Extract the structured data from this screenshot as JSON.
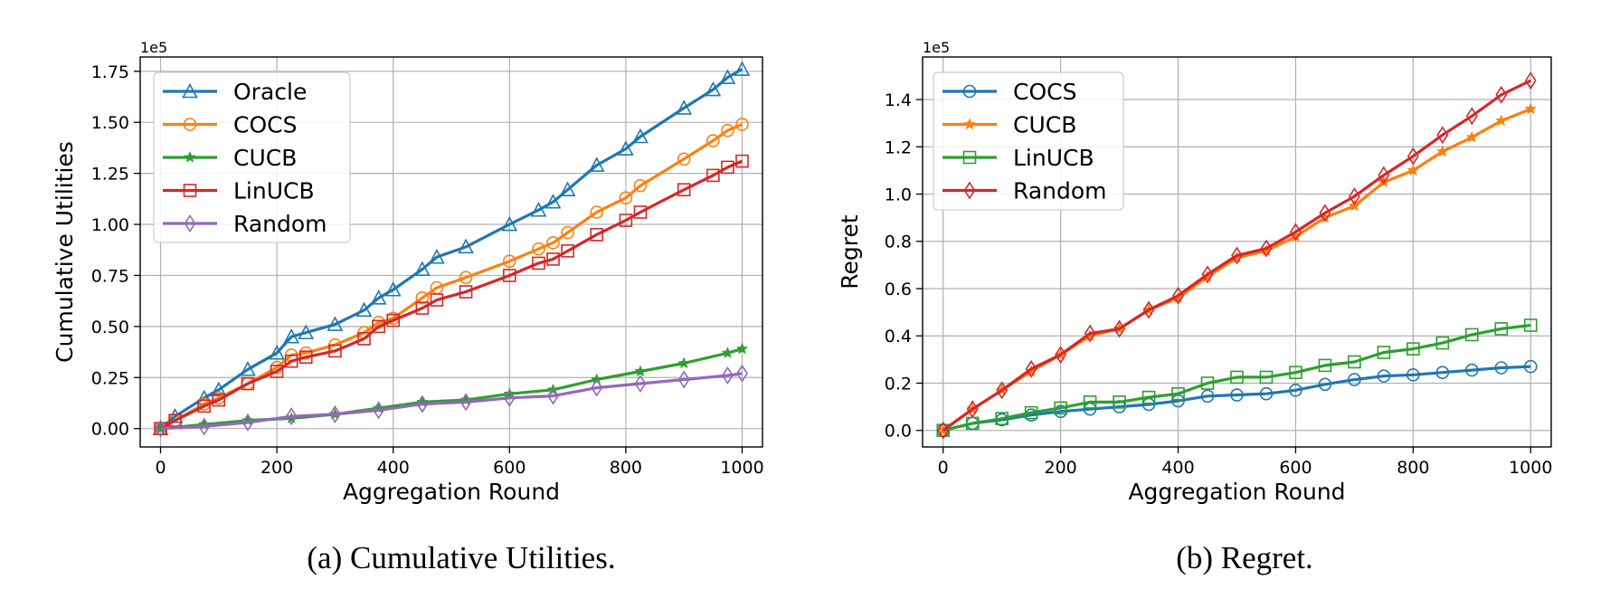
{
  "captions": [
    "(a) Cumulative Utilities.",
    "(b) Regret."
  ],
  "chart_data": [
    {
      "type": "line",
      "title": "",
      "xlabel": "Aggregation Round",
      "ylabel": "Cumulative Utilities",
      "scale_label": "1e5",
      "xlim": [
        -35,
        1035
      ],
      "ylim": [
        -0.09,
        1.82
      ],
      "xticks": [
        0,
        200,
        400,
        600,
        800,
        1000
      ],
      "yticks": [
        0.0,
        0.25,
        0.5,
        0.75,
        1.0,
        1.25,
        1.5,
        1.75
      ],
      "xtick_labels": [
        "0",
        "200",
        "400",
        "600",
        "800",
        "1000"
      ],
      "ytick_labels": [
        "0.00",
        "0.25",
        "0.50",
        "0.75",
        "1.00",
        "1.25",
        "1.50",
        "1.75"
      ],
      "grid": true,
      "legend_position": "top-left",
      "series": [
        {
          "name": "Oracle",
          "color": "#1f77b4",
          "marker": "triangle",
          "x": [
            0,
            25,
            75,
            100,
            150,
            200,
            225,
            250,
            300,
            350,
            375,
            400,
            450,
            475,
            525,
            600,
            650,
            675,
            700,
            750,
            800,
            825,
            900,
            950,
            975,
            1000
          ],
          "y": [
            0.0,
            0.06,
            0.15,
            0.19,
            0.29,
            0.37,
            0.45,
            0.47,
            0.51,
            0.58,
            0.64,
            0.68,
            0.78,
            0.84,
            0.89,
            1.0,
            1.07,
            1.11,
            1.17,
            1.29,
            1.37,
            1.43,
            1.57,
            1.66,
            1.72,
            1.76
          ]
        },
        {
          "name": "COCS",
          "color": "#ff7f0e",
          "marker": "circle",
          "x": [
            0,
            25,
            75,
            100,
            150,
            200,
            225,
            250,
            300,
            350,
            375,
            400,
            450,
            475,
            525,
            600,
            650,
            675,
            700,
            750,
            800,
            825,
            900,
            950,
            975,
            1000
          ],
          "y": [
            0.0,
            0.04,
            0.12,
            0.15,
            0.22,
            0.3,
            0.36,
            0.37,
            0.41,
            0.47,
            0.52,
            0.54,
            0.64,
            0.69,
            0.74,
            0.82,
            0.88,
            0.91,
            0.96,
            1.06,
            1.13,
            1.19,
            1.32,
            1.41,
            1.46,
            1.49
          ]
        },
        {
          "name": "CUCB",
          "color": "#2ca02c",
          "marker": "star",
          "x": [
            0,
            75,
            150,
            225,
            300,
            375,
            450,
            525,
            600,
            675,
            750,
            825,
            900,
            975,
            1000
          ],
          "y": [
            0.0,
            0.02,
            0.04,
            0.05,
            0.07,
            0.1,
            0.13,
            0.14,
            0.17,
            0.19,
            0.24,
            0.28,
            0.32,
            0.37,
            0.39
          ]
        },
        {
          "name": "LinUCB",
          "color": "#d62728",
          "marker": "square",
          "x": [
            0,
            25,
            75,
            100,
            150,
            200,
            225,
            250,
            300,
            350,
            375,
            400,
            450,
            475,
            525,
            600,
            650,
            675,
            700,
            750,
            800,
            825,
            900,
            950,
            975,
            1000
          ],
          "y": [
            0.0,
            0.04,
            0.11,
            0.14,
            0.22,
            0.28,
            0.33,
            0.35,
            0.38,
            0.44,
            0.5,
            0.53,
            0.59,
            0.63,
            0.67,
            0.75,
            0.81,
            0.83,
            0.87,
            0.95,
            1.02,
            1.06,
            1.17,
            1.24,
            1.28,
            1.31
          ]
        },
        {
          "name": "Random",
          "color": "#9467bd",
          "marker": "diamond",
          "x": [
            0,
            75,
            150,
            225,
            300,
            375,
            450,
            525,
            600,
            675,
            750,
            825,
            900,
            975,
            1000
          ],
          "y": [
            0.0,
            0.01,
            0.03,
            0.06,
            0.07,
            0.09,
            0.12,
            0.13,
            0.15,
            0.16,
            0.2,
            0.22,
            0.24,
            0.26,
            0.27
          ]
        }
      ]
    },
    {
      "type": "line",
      "title": "",
      "xlabel": "Aggregation Round",
      "ylabel": "Regret",
      "scale_label": "1e5",
      "xlim": [
        -35,
        1035
      ],
      "ylim": [
        -0.07,
        1.58
      ],
      "xticks": [
        0,
        200,
        400,
        600,
        800,
        1000
      ],
      "yticks": [
        0.0,
        0.2,
        0.4,
        0.6,
        0.8,
        1.0,
        1.2,
        1.4
      ],
      "xtick_labels": [
        "0",
        "200",
        "400",
        "600",
        "800",
        "1000"
      ],
      "ytick_labels": [
        "0.0",
        "0.2",
        "0.4",
        "0.6",
        "0.8",
        "1.0",
        "1.2",
        "1.4"
      ],
      "grid": true,
      "legend_position": "top-left",
      "series": [
        {
          "name": "COCS",
          "color": "#1f77b4",
          "marker": "circle",
          "x": [
            0,
            50,
            100,
            150,
            200,
            250,
            300,
            350,
            400,
            450,
            500,
            550,
            600,
            650,
            700,
            750,
            800,
            850,
            900,
            950,
            1000
          ],
          "y": [
            0.0,
            0.03,
            0.045,
            0.065,
            0.08,
            0.09,
            0.1,
            0.11,
            0.125,
            0.145,
            0.15,
            0.155,
            0.17,
            0.195,
            0.215,
            0.23,
            0.235,
            0.245,
            0.255,
            0.265,
            0.27
          ]
        },
        {
          "name": "CUCB",
          "color": "#ff7f0e",
          "marker": "star",
          "x": [
            0,
            50,
            100,
            150,
            200,
            250,
            300,
            350,
            400,
            450,
            500,
            550,
            600,
            650,
            700,
            750,
            800,
            850,
            900,
            950,
            1000
          ],
          "y": [
            0.0,
            0.09,
            0.17,
            0.25,
            0.32,
            0.4,
            0.43,
            0.51,
            0.56,
            0.65,
            0.73,
            0.76,
            0.82,
            0.9,
            0.95,
            1.05,
            1.1,
            1.18,
            1.24,
            1.31,
            1.36
          ]
        },
        {
          "name": "LinUCB",
          "color": "#2ca02c",
          "marker": "square",
          "x": [
            0,
            50,
            100,
            150,
            200,
            250,
            300,
            350,
            400,
            450,
            500,
            550,
            600,
            650,
            700,
            750,
            800,
            850,
            900,
            950,
            1000
          ],
          "y": [
            0.0,
            0.03,
            0.05,
            0.075,
            0.095,
            0.12,
            0.12,
            0.14,
            0.155,
            0.2,
            0.225,
            0.225,
            0.245,
            0.275,
            0.29,
            0.33,
            0.345,
            0.37,
            0.405,
            0.43,
            0.445
          ]
        },
        {
          "name": "Random",
          "color": "#d62728",
          "marker": "diamond",
          "x": [
            0,
            50,
            100,
            150,
            200,
            250,
            300,
            350,
            400,
            450,
            500,
            550,
            600,
            650,
            700,
            750,
            800,
            850,
            900,
            950,
            1000
          ],
          "y": [
            0.0,
            0.09,
            0.17,
            0.26,
            0.32,
            0.41,
            0.43,
            0.51,
            0.57,
            0.66,
            0.74,
            0.77,
            0.84,
            0.92,
            0.99,
            1.08,
            1.16,
            1.25,
            1.33,
            1.42,
            1.48
          ]
        }
      ]
    }
  ]
}
